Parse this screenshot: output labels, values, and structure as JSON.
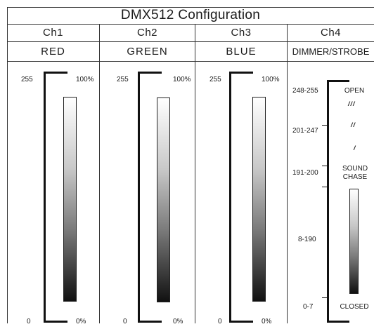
{
  "title": "DMX512 Configuration",
  "channels": [
    {
      "name": "Ch1",
      "color": "RED",
      "max_value": "255",
      "min_value": "0",
      "max_pct": "100%",
      "min_pct": "0%"
    },
    {
      "name": "Ch2",
      "color": "GREEN",
      "max_value": "255",
      "min_value": "0",
      "max_pct": "100%",
      "min_pct": "0%"
    },
    {
      "name": "Ch3",
      "color": "BLUE",
      "max_value": "255",
      "min_value": "0",
      "max_pct": "100%",
      "min_pct": "0%"
    },
    {
      "name": "Ch4",
      "color": "DIMMER/STROBE"
    }
  ],
  "ch4_ranges": [
    {
      "range": "248-255",
      "label": "OPEN"
    },
    {
      "range": "201-247",
      "label": ""
    },
    {
      "range": "191-200",
      "label": "SOUND CHASE"
    },
    {
      "range": "8-190",
      "label": ""
    },
    {
      "range": "0-7",
      "label": "CLOSED"
    }
  ],
  "strobe_glyphs": [
    "///",
    "//",
    "/"
  ],
  "icons": {
    "strobe": "lightning-bolt-icon"
  }
}
